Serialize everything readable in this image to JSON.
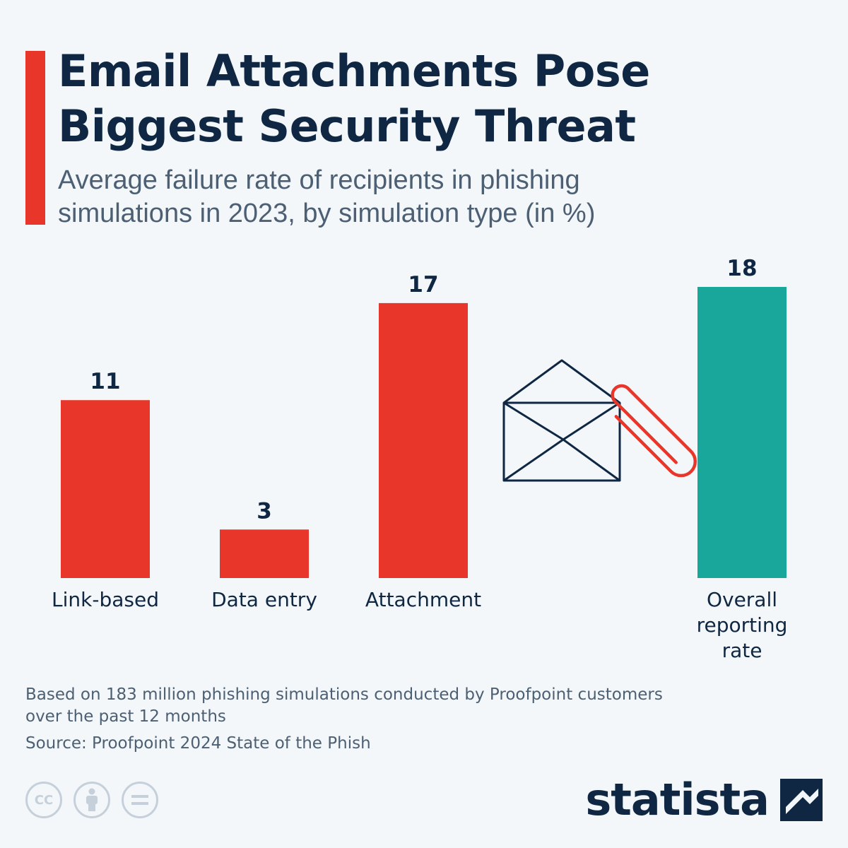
{
  "header": {
    "title": "Email Attachments Pose\nBiggest Security Threat",
    "subtitle": "Average failure rate of recipients in phishing\nsimulations in 2023, by simulation type (in %)"
  },
  "colors": {
    "accent": "#e8372a",
    "highlight": "#18a79a",
    "text_dark": "#0f2742",
    "text_muted": "#4c5f73",
    "background": "#f3f7fa"
  },
  "chart_data": {
    "type": "bar",
    "title": "Email Attachments Pose Biggest Security Threat",
    "subtitle": "Average failure rate of recipients in phishing simulations in 2023, by simulation type (in %)",
    "categories": [
      "Link-based",
      "Data entry",
      "Attachment",
      "Overall reporting rate"
    ],
    "values": [
      11,
      3,
      17,
      18
    ],
    "value_labels": [
      "11",
      "3",
      "17",
      "18"
    ],
    "bar_colors": [
      "#e8372a",
      "#e8372a",
      "#e8372a",
      "#18a79a"
    ],
    "xlabel": "",
    "ylabel": "",
    "ylim": [
      0,
      18
    ],
    "grid": false,
    "legend": "none"
  },
  "decoration": {
    "icon": "envelope-paperclip-icon"
  },
  "footer": {
    "note": "Based on 183 million phishing simulations conducted by Proofpoint customers\nover the past 12 months",
    "source": "Source: Proofpoint 2024 State of the Phish",
    "license_icons": [
      "cc-icon",
      "attribution-icon",
      "no-derivatives-icon"
    ],
    "license_cc_text": "CC",
    "brand": "statista",
    "brand_icon": "statista-logo-icon"
  }
}
